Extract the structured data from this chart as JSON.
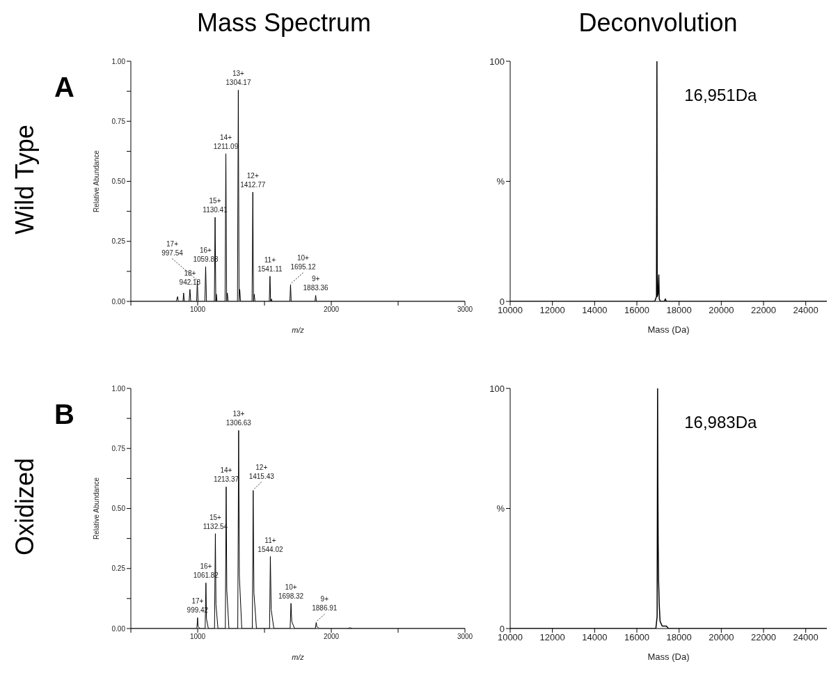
{
  "chart_data": [
    {
      "type": "line",
      "title": "Mass Spectrum",
      "subtitle": "Wild Type",
      "xlabel": "m/z",
      "ylabel": "Relative Abundance",
      "color": "#000000",
      "x": [
        500,
        840,
        850,
        855,
        890,
        895,
        900,
        936,
        942.18,
        948,
        992,
        997.54,
        1003,
        1054,
        1059.83,
        1066,
        1125,
        1130.41,
        1136,
        1140,
        1145,
        1205,
        1211.09,
        1217,
        1222,
        1228,
        1298,
        1304.17,
        1310,
        1315,
        1321,
        1407,
        1412.77,
        1418,
        1423,
        1429,
        1536,
        1541.11,
        1546,
        1552,
        1557,
        1690,
        1695.12,
        1700,
        1878,
        1883.36,
        1888,
        3000
      ],
      "values": [
        0,
        0,
        0.02,
        0,
        0,
        0.035,
        0,
        0,
        0.05,
        0,
        0,
        0.085,
        0,
        0,
        0.145,
        0,
        0,
        0.35,
        0,
        0.03,
        0,
        0,
        0.615,
        0,
        0.035,
        0,
        0,
        0.88,
        0,
        0.05,
        0,
        0,
        0.455,
        0,
        0.03,
        0,
        0,
        0.105,
        0,
        0.01,
        0,
        0,
        0.07,
        0,
        0,
        0.025,
        0,
        0
      ],
      "xlim": [
        500,
        3000
      ],
      "xticks": [
        {
          "value": 500,
          "label": null
        },
        1000,
        {
          "value": 1500,
          "label": null
        },
        2000,
        {
          "value": 2500,
          "label": null
        },
        3000
      ],
      "ylim": [
        0,
        1
      ],
      "yticks": [
        {
          "value": 0,
          "label": "0.00"
        },
        {
          "value": 0.125,
          "label": null
        },
        0.25,
        {
          "value": 0.375,
          "label": null
        },
        {
          "value": 0.5,
          "label": "0.50"
        },
        {
          "value": 0.625,
          "label": null
        },
        0.75,
        {
          "value": 0.875,
          "label": null
        },
        {
          "value": 1,
          "label": "1.00"
        }
      ],
      "annotations": [
        "A",
        {
          "text": "18+\n942.18",
          "x": 942.18,
          "y": 0.05
        },
        {
          "text": "17+\n997.54",
          "x": 997.54,
          "y": 0.085
        },
        {
          "text": "16+\n1059.83",
          "x": 1059.83,
          "y": 0.145
        },
        {
          "text": "15+\n1130.41",
          "x": 1130.41,
          "y": 0.35
        },
        {
          "text": "14+\n1211.09",
          "x": 1211.09,
          "y": 0.615
        },
        {
          "text": "13+\n1304.17",
          "x": 1304.17,
          "y": 0.88
        },
        {
          "text": "12+\n1412.77",
          "x": 1412.77,
          "y": 0.455
        },
        {
          "text": "11+\n1541.11",
          "x": 1541.11,
          "y": 0.105
        },
        {
          "text": "10+\n1695.12",
          "x": 1695.12,
          "y": 0.07
        },
        {
          "text": "9+\n1883.36",
          "x": 1883.36,
          "y": 0.025
        }
      ]
    },
    {
      "type": "line",
      "title": "Deconvolution",
      "xlabel": "Mass (Da)",
      "color": "#000000",
      "x": [
        10000,
        16850,
        16930,
        16951,
        16965,
        17000,
        17040,
        17060,
        17120,
        17300,
        17350,
        17400,
        25000
      ],
      "values": [
        0,
        0,
        2,
        100,
        2,
        3,
        11,
        1,
        0,
        0,
        1,
        0,
        0
      ],
      "xlim": [
        10000,
        25000
      ],
      "xticks": [
        10000,
        12000,
        14000,
        16000,
        18000,
        20000,
        22000,
        24000
      ],
      "ylim": [
        0,
        100
      ],
      "yticks": [
        0,
        {
          "value": 50,
          "label": "%"
        },
        100
      ],
      "annotations": [
        "16,951Da"
      ]
    },
    {
      "type": "line",
      "subtitle": "Oxidized",
      "xlabel": "m/z",
      "ylabel": "Relative Abundance",
      "color": "#000000",
      "x": [
        500,
        994,
        999.42,
        1003,
        1015,
        1056,
        1061.82,
        1066,
        1080,
        1126,
        1132.54,
        1137,
        1152,
        1207,
        1213.37,
        1218,
        1234,
        1300,
        1306.63,
        1312,
        1330,
        1409,
        1415.43,
        1421,
        1440,
        1538,
        1544.02,
        1550,
        1570,
        1692,
        1698.32,
        1704,
        1725,
        1881,
        1886.91,
        1892,
        1910,
        2120,
        2140,
        2160,
        3000
      ],
      "values": [
        0,
        0,
        0.045,
        0.01,
        0,
        0,
        0.19,
        0.04,
        0,
        0,
        0.395,
        0.1,
        0,
        0,
        0.59,
        0.16,
        0,
        0,
        0.825,
        0.22,
        0,
        0,
        0.575,
        0.15,
        0,
        0,
        0.3,
        0.08,
        0,
        0,
        0.105,
        0.03,
        0,
        0,
        0.025,
        0.008,
        0,
        0,
        0.003,
        0,
        0
      ],
      "xlim": [
        500,
        3000
      ],
      "xticks": [
        {
          "value": 500,
          "label": null
        },
        1000,
        {
          "value": 1500,
          "label": null
        },
        2000,
        {
          "value": 2500,
          "label": null
        },
        3000
      ],
      "ylim": [
        0,
        1
      ],
      "yticks": [
        {
          "value": 0,
          "label": "0.00"
        },
        {
          "value": 0.125,
          "label": null
        },
        0.25,
        {
          "value": 0.375,
          "label": null
        },
        {
          "value": 0.5,
          "label": "0.50"
        },
        {
          "value": 0.625,
          "label": null
        },
        0.75,
        {
          "value": 0.875,
          "label": null
        },
        {
          "value": 1,
          "label": "1.00"
        }
      ],
      "annotations": [
        "B",
        {
          "text": "17+\n999.42",
          "x": 999.42,
          "y": 0.045
        },
        {
          "text": "16+\n1061.82",
          "x": 1061.82,
          "y": 0.19
        },
        {
          "text": "15+\n1132.54",
          "x": 1132.54,
          "y": 0.395
        },
        {
          "text": "14+\n1213.37",
          "x": 1213.37,
          "y": 0.59
        },
        {
          "text": "13+\n1306.63",
          "x": 1306.63,
          "y": 0.825
        },
        {
          "text": "12+\n1415.43",
          "x": 1415.43,
          "y": 0.575
        },
        {
          "text": "11+\n1544.02",
          "x": 1544.02,
          "y": 0.3
        },
        {
          "text": "10+\n1698.32",
          "x": 1698.32,
          "y": 0.105
        },
        {
          "text": "9+\n1886.91",
          "x": 1886.91,
          "y": 0.025
        }
      ]
    },
    {
      "type": "line",
      "xlabel": "Mass (Da)",
      "color": "#000000",
      "x": [
        10000,
        16900,
        16960,
        16983,
        16995,
        17010,
        17030,
        17060,
        17100,
        17200,
        17400,
        17500,
        25000
      ],
      "values": [
        0,
        0,
        5,
        100,
        60,
        35,
        20,
        10,
        3,
        1,
        1,
        0,
        0
      ],
      "xlim": [
        10000,
        25000
      ],
      "xticks": [
        10000,
        12000,
        14000,
        16000,
        18000,
        20000,
        22000,
        24000
      ],
      "ylim": [
        0,
        100
      ],
      "yticks": [
        0,
        {
          "value": 50,
          "label": "%"
        },
        100
      ],
      "annotations": [
        "16,983Da"
      ]
    }
  ]
}
